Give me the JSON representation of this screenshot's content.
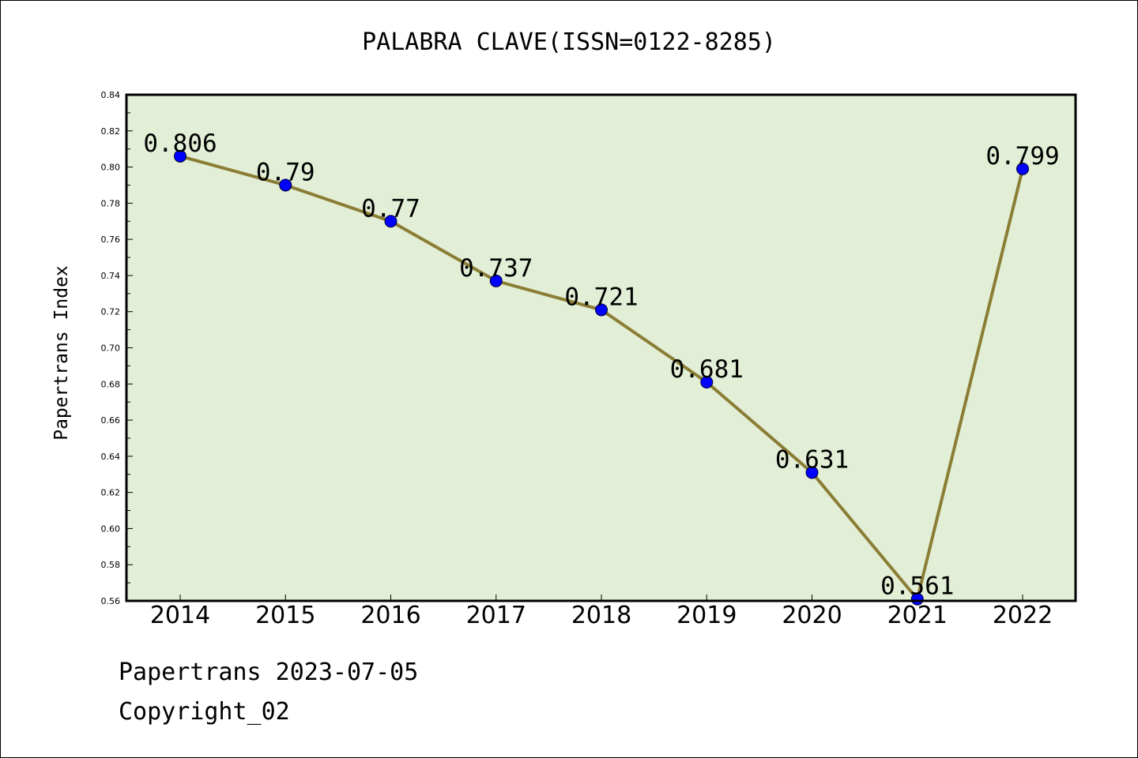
{
  "chart_data": {
    "type": "line",
    "title": "PALABRA CLAVE(ISSN=0122-8285)",
    "xlabel": "",
    "ylabel": "Papertrans Index",
    "categories": [
      "2014",
      "2015",
      "2016",
      "2017",
      "2018",
      "2019",
      "2020",
      "2021",
      "2022"
    ],
    "values": [
      0.806,
      0.79,
      0.77,
      0.737,
      0.721,
      0.681,
      0.631,
      0.561,
      0.799
    ],
    "data_labels": [
      "0.806",
      "0.79",
      "0.77",
      "0.737",
      "0.721",
      "0.681",
      "0.631",
      "0.561",
      "0.799"
    ],
    "ylim": [
      0.56,
      0.84
    ],
    "yticks": [
      "0.56",
      "0.58",
      "0.60",
      "0.62",
      "0.64",
      "0.66",
      "0.68",
      "0.70",
      "0.72",
      "0.74",
      "0.76",
      "0.78",
      "0.80",
      "0.82",
      "0.84"
    ],
    "grid": false,
    "colors": {
      "plot_background": "#e2efd6",
      "line": "#8b7d35",
      "marker": "#0000ff"
    }
  },
  "footer": {
    "line1": "Papertrans 2023-07-05",
    "line2": "Copyright_02"
  }
}
